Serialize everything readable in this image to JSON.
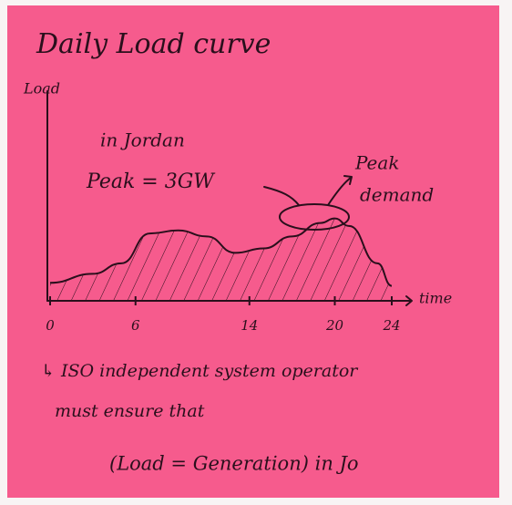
{
  "chart_data": {
    "type": "area",
    "title": "Daily Load curve",
    "y_label": "Load",
    "x_label": "time",
    "x": [
      0,
      3,
      5,
      7,
      9,
      11,
      13,
      15,
      17,
      19,
      20,
      21,
      23,
      24
    ],
    "values": [
      1.2,
      1.8,
      2.5,
      4.5,
      4.7,
      4.3,
      3.2,
      3.5,
      4.3,
      5.2,
      5.5,
      5.0,
      2.5,
      1.0
    ],
    "xlim": [
      0,
      24
    ],
    "ylim": [
      0,
      14
    ],
    "xticks": [
      0,
      6,
      14,
      20,
      24
    ],
    "color": "#2a0f1c",
    "annotations": [
      "in Jordan",
      "Peak = 3GW",
      "Peak",
      "demand",
      "↳ ISO independent system operator",
      "must ensure that",
      "(Load = Generation) in Jo"
    ]
  }
}
